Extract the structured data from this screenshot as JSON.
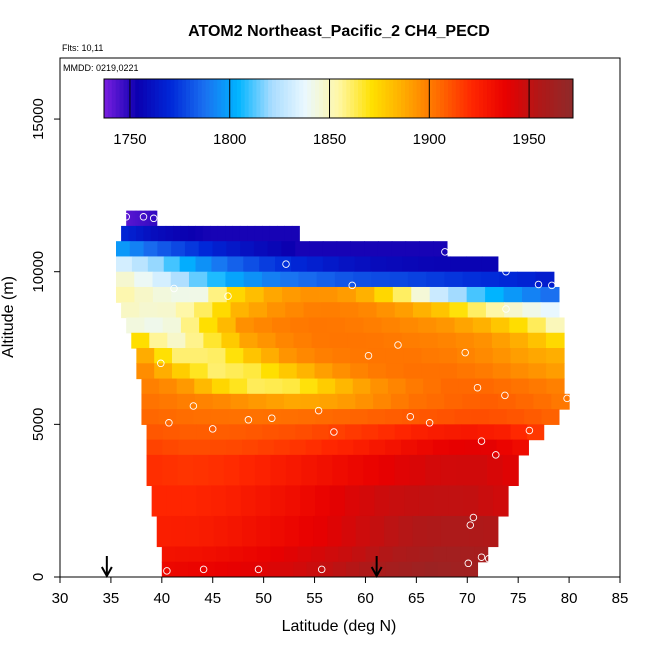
{
  "chart_data": {
    "type": "heatmap",
    "title": "ATOM2 Northeast_Pacific_2 CH4_PECD",
    "flights_label": "Flts: 10,11",
    "date_label": "MMDD: 0219,0221",
    "xlabel": "Latitude (deg N)",
    "ylabel": "Altitude (m)",
    "xlim": [
      30,
      85
    ],
    "ylim": [
      0,
      17000
    ],
    "x_ticks": [
      30,
      35,
      40,
      45,
      50,
      55,
      60,
      65,
      70,
      75,
      80,
      85
    ],
    "y_ticks": [
      0,
      5000,
      10000,
      15000
    ],
    "colorbar": {
      "range": [
        1737,
        1972
      ],
      "ticks": [
        1750,
        1800,
        1850,
        1900,
        1950
      ],
      "colors": [
        "#7b1fe0",
        "#0b00b0",
        "#0028d8",
        "#1a70f0",
        "#00b4ff",
        "#a8dcff",
        "#eaf8ff",
        "#fff7a6",
        "#ffe000",
        "#ffa800",
        "#ff6a00",
        "#ff2600",
        "#e80000",
        "#b01818",
        "#8e2a2a"
      ]
    },
    "z_values_ppb": [
      {
        "alt_range": [
          11500,
          12000
        ],
        "lat_range": [
          36.5,
          39.5
        ],
        "values": [
          1742,
          1745,
          1748
        ]
      },
      {
        "alt_range": [
          11000,
          11500
        ],
        "lat_range": [
          36,
          53.5
        ],
        "values": [
          1770,
          1760,
          1755,
          1752,
          1752,
          1752,
          1752
        ]
      },
      {
        "alt_range": [
          10500,
          11000
        ],
        "lat_range": [
          35.5,
          68
        ],
        "values": [
          1800,
          1785,
          1775,
          1765,
          1758,
          1752,
          1752,
          1752,
          1752,
          1752
        ]
      },
      {
        "alt_range": [
          10000,
          10500
        ],
        "lat_range": [
          35.5,
          73
        ],
        "values": [
          1835,
          1820,
          1800,
          1785,
          1775,
          1768,
          1762,
          1758,
          1756,
          1755,
          1755
        ]
      },
      {
        "alt_range": [
          9500,
          10000
        ],
        "lat_range": [
          35.5,
          78.5
        ],
        "values": [
          1850,
          1835,
          1815,
          1800,
          1790,
          1785,
          1780,
          1778,
          1775,
          1772,
          1770,
          1765
        ]
      },
      {
        "alt_range": [
          9000,
          9500
        ],
        "lat_range": [
          35.5,
          79
        ],
        "values": [
          1855,
          1845,
          1840,
          1875,
          1890,
          1895,
          1890,
          1865,
          1830,
          1810,
          1795,
          1785
        ]
      },
      {
        "alt_range": [
          8500,
          9000
        ],
        "lat_range": [
          36,
          79
        ],
        "values": [
          1850,
          1845,
          1860,
          1885,
          1895,
          1900,
          1898,
          1892,
          1880,
          1860,
          1845,
          1835
        ]
      },
      {
        "alt_range": [
          8000,
          8500
        ],
        "lat_range": [
          36.5,
          79.5
        ],
        "values": [
          1845,
          1840,
          1870,
          1895,
          1900,
          1902,
          1900,
          1897,
          1893,
          1885,
          1870,
          1845
        ]
      },
      {
        "alt_range": [
          7500,
          8000
        ],
        "lat_range": [
          37,
          79.5
        ],
        "values": [
          1880,
          1845,
          1865,
          1890,
          1898,
          1902,
          1902,
          1900,
          1898,
          1894,
          1885,
          1870
        ]
      },
      {
        "alt_range": [
          7000,
          7500
        ],
        "lat_range": [
          37.5,
          79.5
        ],
        "values": [
          1895,
          1860,
          1860,
          1880,
          1895,
          1900,
          1902,
          1902,
          1900,
          1896,
          1890,
          1885
        ]
      },
      {
        "alt_range": [
          6500,
          7000
        ],
        "lat_range": [
          37.5,
          79.5
        ],
        "values": [
          1900,
          1880,
          1860,
          1865,
          1880,
          1893,
          1900,
          1903,
          1903,
          1900,
          1895,
          1890
        ]
      },
      {
        "alt_range": [
          6000,
          6500
        ],
        "lat_range": [
          38,
          79.5
        ],
        "values": [
          1900,
          1895,
          1875,
          1862,
          1865,
          1880,
          1893,
          1900,
          1905,
          1905,
          1902,
          1898
        ]
      },
      {
        "alt_range": [
          5500,
          6000
        ],
        "lat_range": [
          38,
          80
        ],
        "values": [
          1903,
          1900,
          1897,
          1892,
          1888,
          1890,
          1896,
          1903,
          1906,
          1908,
          1905,
          1900
        ]
      },
      {
        "alt_range": [
          5000,
          5500
        ],
        "lat_range": [
          38,
          79
        ],
        "values": [
          1906,
          1904,
          1903,
          1903,
          1904,
          1906,
          1908,
          1910,
          1912,
          1910,
          1906
        ]
      },
      {
        "alt_range": [
          4500,
          5000
        ],
        "lat_range": [
          38.5,
          77.5
        ],
        "values": [
          1910,
          1908,
          1908,
          1910,
          1912,
          1916,
          1920,
          1925,
          1928,
          1925,
          1915
        ]
      },
      {
        "alt_range": [
          4000,
          4500
        ],
        "lat_range": [
          38.5,
          76
        ],
        "values": [
          1915,
          1912,
          1913,
          1916,
          1920,
          1925,
          1932,
          1938,
          1940,
          1932
        ]
      },
      {
        "alt_range": [
          3000,
          4000
        ],
        "lat_range": [
          38.5,
          75
        ],
        "values": [
          1920,
          1918,
          1920,
          1925,
          1930,
          1935,
          1940,
          1945,
          1946,
          1940
        ]
      },
      {
        "alt_range": [
          2000,
          3000
        ],
        "lat_range": [
          39,
          74
        ],
        "values": [
          1922,
          1922,
          1925,
          1930,
          1935,
          1942,
          1948,
          1950,
          1950,
          1945
        ]
      },
      {
        "alt_range": [
          1000,
          2000
        ],
        "lat_range": [
          39.5,
          73
        ],
        "values": [
          1925,
          1926,
          1930,
          1935,
          1940,
          1948,
          1955,
          1957,
          1955
        ]
      },
      {
        "alt_range": [
          500,
          1000
        ],
        "lat_range": [
          40,
          72
        ],
        "values": [
          1930,
          1932,
          1936,
          1942,
          1948,
          1956,
          1962,
          1960
        ]
      },
      {
        "alt_range": [
          0,
          500
        ],
        "lat_range": [
          40,
          71
        ],
        "values": [
          1935,
          1937,
          1940,
          1945,
          1952,
          1960,
          1965,
          1962
        ]
      }
    ],
    "sample_points": [
      [
        36.5,
        11800
      ],
      [
        38.2,
        11800
      ],
      [
        39.2,
        11750
      ],
      [
        52.2,
        10250
      ],
      [
        67.8,
        10650
      ],
      [
        58.7,
        9550
      ],
      [
        73.8,
        10000
      ],
      [
        77,
        9580
      ],
      [
        78.3,
        9550
      ],
      [
        41.2,
        9450
      ],
      [
        46.5,
        9200
      ],
      [
        73.8,
        8780
      ],
      [
        63.2,
        7600
      ],
      [
        60.3,
        7250
      ],
      [
        69.8,
        7350
      ],
      [
        39.9,
        7000
      ],
      [
        71,
        6200
      ],
      [
        73.7,
        5950
      ],
      [
        79.8,
        5850
      ],
      [
        43.1,
        5600
      ],
      [
        55.4,
        5450
      ],
      [
        40.7,
        5050
      ],
      [
        48.5,
        5150
      ],
      [
        50.8,
        5200
      ],
      [
        64.4,
        5250
      ],
      [
        66.3,
        5050
      ],
      [
        45,
        4850
      ],
      [
        56.9,
        4750
      ],
      [
        76.1,
        4800
      ],
      [
        71.4,
        4450
      ],
      [
        72.8,
        4000
      ],
      [
        70.6,
        1950
      ],
      [
        70.3,
        1700
      ],
      [
        71.4,
        650
      ],
      [
        70.1,
        450
      ],
      [
        72.1,
        600
      ],
      [
        40.5,
        200
      ],
      [
        44.1,
        250
      ],
      [
        49.5,
        250
      ],
      [
        55.7,
        250
      ]
    ],
    "arrows_lat": [
      34.6,
      61.1
    ],
    "grid": false,
    "legend": "top-colorbar"
  }
}
